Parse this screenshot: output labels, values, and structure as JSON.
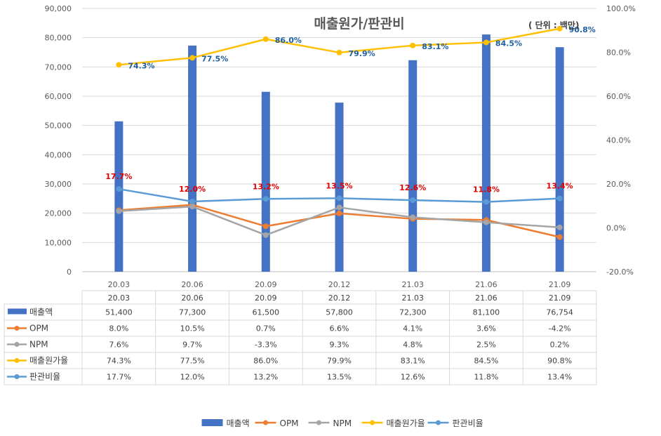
{
  "chart_data": {
    "type": "bar+line",
    "title": "매출원가/판관비",
    "unit_note": "( 단위 : 백만)",
    "categories": [
      "20.03",
      "20.06",
      "20.09",
      "20.12",
      "21.03",
      "21.06",
      "21.09"
    ],
    "primary_axis": {
      "range": [
        0,
        90000
      ],
      "ticks": [
        "0",
        "10,000",
        "20,000",
        "30,000",
        "40,000",
        "50,000",
        "60,000",
        "70,000",
        "80,000",
        "90,000"
      ]
    },
    "secondary_axis": {
      "range": [
        -20,
        100
      ],
      "ticks": [
        "-20.0%",
        "0.0%",
        "20.0%",
        "40.0%",
        "60.0%",
        "80.0%",
        "100.0%"
      ]
    },
    "series": [
      {
        "name": "매출액",
        "type": "bar",
        "axis": "primary",
        "color": "#4472c4",
        "values": [
          51400,
          77300,
          61500,
          57800,
          72300,
          81100,
          76754
        ],
        "table": [
          "51,400",
          "77,300",
          "61,500",
          "57,800",
          "72,300",
          "81,100",
          "76,754"
        ]
      },
      {
        "name": "OPM",
        "type": "line",
        "axis": "secondary",
        "color": "#ed7d31",
        "values": [
          8.0,
          10.5,
          0.7,
          6.6,
          4.1,
          3.6,
          -4.2
        ],
        "table": [
          "8.0%",
          "10.5%",
          "0.7%",
          "6.6%",
          "4.1%",
          "3.6%",
          "-4.2%"
        ]
      },
      {
        "name": "NPM",
        "type": "line",
        "axis": "secondary",
        "color": "#a5a5a5",
        "values": [
          7.6,
          9.7,
          -3.3,
          9.3,
          4.8,
          2.5,
          0.2
        ],
        "table": [
          "7.6%",
          "9.7%",
          "-3.3%",
          "9.3%",
          "4.8%",
          "2.5%",
          "0.2%"
        ]
      },
      {
        "name": "매출원가율",
        "type": "line",
        "axis": "secondary",
        "color": "#ffc000",
        "values": [
          74.3,
          77.5,
          86.0,
          79.9,
          83.1,
          84.5,
          90.8
        ],
        "table": [
          "74.3%",
          "77.5%",
          "86.0%",
          "79.9%",
          "83.1%",
          "84.5%",
          "90.8%"
        ],
        "data_labels": [
          "74.3%",
          "77.5%",
          "86.0%",
          "79.9%",
          "83.1%",
          "84.5%",
          "90.8%"
        ],
        "label_color": "#1f5fa0"
      },
      {
        "name": "판관비율",
        "type": "line",
        "axis": "secondary",
        "color": "#5b9bd5",
        "values": [
          17.7,
          12.0,
          13.2,
          13.5,
          12.6,
          11.8,
          13.4
        ],
        "table": [
          "17.7%",
          "12.0%",
          "13.2%",
          "13.5%",
          "12.6%",
          "11.8%",
          "13.4%"
        ],
        "data_labels": [
          "17.7%",
          "12.0%",
          "13.2%",
          "13.5%",
          "12.6%",
          "11.8%",
          "13.4%"
        ],
        "label_color": "#e00000"
      }
    ],
    "legend": "bottom",
    "data_table": true
  }
}
